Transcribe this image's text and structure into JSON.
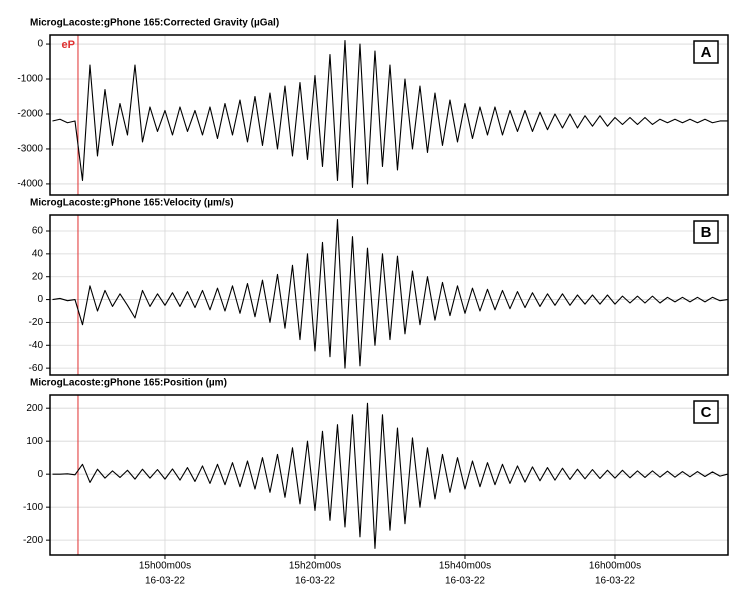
{
  "time_axis": {
    "xlim": [
      884.67,
      975.07
    ],
    "xticks": [
      {
        "value": 900,
        "label": "15h00m00s"
      },
      {
        "value": 920,
        "label": "15h20m00s"
      },
      {
        "value": 940,
        "label": "15h40m00s"
      },
      {
        "value": 960,
        "label": "16h00m00s"
      }
    ],
    "tick_dates": [
      "16-03-22",
      "16-03-22",
      "16-03-22",
      "16-03-22"
    ]
  },
  "marker": {
    "label": "eP",
    "x": 888.4,
    "color": "#e03030"
  },
  "chart_data": [
    {
      "type": "line",
      "title": "MicrogLacoste:gPhone 165:Corrected Gravity (µGal)",
      "panel_label": "A",
      "color": "#000000",
      "grid": true,
      "ylim": [
        -4317,
        259
      ],
      "yticks": [
        0,
        -1000,
        -2000,
        -3000,
        -4000
      ],
      "x": [
        885,
        886,
        887,
        888,
        889,
        890,
        891,
        892,
        893,
        894,
        895,
        896,
        897,
        898,
        899,
        900,
        901,
        902,
        903,
        904,
        905,
        906,
        907,
        908,
        909,
        910,
        911,
        912,
        913,
        914,
        915,
        916,
        917,
        918,
        919,
        920,
        921,
        922,
        923,
        924,
        925,
        926,
        927,
        928,
        929,
        930,
        931,
        932,
        933,
        934,
        935,
        936,
        937,
        938,
        939,
        940,
        941,
        942,
        943,
        944,
        945,
        946,
        947,
        948,
        949,
        950,
        951,
        952,
        953,
        954,
        955,
        956,
        957,
        958,
        959,
        960,
        961,
        962,
        963,
        964,
        965,
        966,
        967,
        968,
        969,
        970,
        971,
        972,
        973,
        974,
        975
      ],
      "values": [
        -2200,
        -2150,
        -2250,
        -2200,
        -3900,
        -600,
        -3200,
        -1300,
        -2900,
        -1700,
        -2600,
        -600,
        -2800,
        -1800,
        -2500,
        -1900,
        -2600,
        -1800,
        -2500,
        -1900,
        -2600,
        -1800,
        -2700,
        -1700,
        -2600,
        -1600,
        -2800,
        -1500,
        -2900,
        -1400,
        -3000,
        -1200,
        -3200,
        -1100,
        -3300,
        -900,
        -3500,
        -300,
        -3900,
        100,
        -4100,
        0,
        -4000,
        -200,
        -3500,
        -600,
        -3600,
        -1000,
        -3000,
        -1200,
        -3100,
        -1400,
        -2900,
        -1600,
        -2800,
        -1700,
        -2700,
        -1800,
        -2600,
        -1800,
        -2600,
        -1900,
        -2500,
        -1900,
        -2500,
        -1950,
        -2450,
        -2000,
        -2400,
        -2000,
        -2400,
        -2050,
        -2350,
        -2050,
        -2350,
        -2100,
        -2300,
        -2100,
        -2300,
        -2100,
        -2300,
        -2150,
        -2250,
        -2150,
        -2250,
        -2150,
        -2250,
        -2150,
        -2250,
        -2200,
        -2200
      ]
    },
    {
      "type": "line",
      "title": "MicrogLacoste:gPhone 165:Velocity (µm/s)",
      "panel_label": "B",
      "color": "#000000",
      "grid": true,
      "ylim": [
        -66,
        74
      ],
      "yticks": [
        60,
        40,
        20,
        0,
        -20,
        -40,
        -60
      ],
      "x": [
        885,
        886,
        887,
        888,
        889,
        890,
        891,
        892,
        893,
        894,
        895,
        896,
        897,
        898,
        899,
        900,
        901,
        902,
        903,
        904,
        905,
        906,
        907,
        908,
        909,
        910,
        911,
        912,
        913,
        914,
        915,
        916,
        917,
        918,
        919,
        920,
        921,
        922,
        923,
        924,
        925,
        926,
        927,
        928,
        929,
        930,
        931,
        932,
        933,
        934,
        935,
        936,
        937,
        938,
        939,
        940,
        941,
        942,
        943,
        944,
        945,
        946,
        947,
        948,
        949,
        950,
        951,
        952,
        953,
        954,
        955,
        956,
        957,
        958,
        959,
        960,
        961,
        962,
        963,
        964,
        965,
        966,
        967,
        968,
        969,
        970,
        971,
        972,
        973,
        974,
        975
      ],
      "values": [
        0,
        1,
        -1,
        0,
        -22,
        12,
        -10,
        8,
        -6,
        5,
        -5,
        -16,
        8,
        -6,
        5,
        -5,
        6,
        -6,
        7,
        -7,
        8,
        -9,
        10,
        -10,
        12,
        -12,
        14,
        -15,
        17,
        -20,
        22,
        -25,
        30,
        -35,
        40,
        -45,
        50,
        -50,
        70,
        -60,
        55,
        -58,
        45,
        -40,
        40,
        -35,
        38,
        -30,
        25,
        -22,
        20,
        -18,
        15,
        -14,
        12,
        -12,
        10,
        -10,
        9,
        -9,
        8,
        -8,
        7,
        -7,
        6,
        -6,
        5,
        -5,
        5,
        -5,
        4,
        -4,
        4,
        -4,
        4,
        -4,
        3,
        -3,
        3,
        -3,
        3,
        -3,
        2,
        -2,
        2,
        -2,
        2,
        -2,
        2,
        -1,
        0
      ]
    },
    {
      "type": "line",
      "title": "MicrogLacoste:gPhone 165:Position (µm)",
      "panel_label": "C",
      "color": "#000000",
      "grid": true,
      "ylim": [
        -245,
        240
      ],
      "yticks": [
        200,
        100,
        0,
        -100,
        -200
      ],
      "x": [
        885,
        886,
        887,
        888,
        889,
        890,
        891,
        892,
        893,
        894,
        895,
        896,
        897,
        898,
        899,
        900,
        901,
        902,
        903,
        904,
        905,
        906,
        907,
        908,
        909,
        910,
        911,
        912,
        913,
        914,
        915,
        916,
        917,
        918,
        919,
        920,
        921,
        922,
        923,
        924,
        925,
        926,
        927,
        928,
        929,
        930,
        931,
        932,
        933,
        934,
        935,
        936,
        937,
        938,
        939,
        940,
        941,
        942,
        943,
        944,
        945,
        946,
        947,
        948,
        949,
        950,
        951,
        952,
        953,
        954,
        955,
        956,
        957,
        958,
        959,
        960,
        961,
        962,
        963,
        964,
        965,
        966,
        967,
        968,
        969,
        970,
        971,
        972,
        973,
        974,
        975
      ],
      "values": [
        0,
        0,
        1,
        -2,
        30,
        -25,
        15,
        -12,
        10,
        -10,
        12,
        -15,
        15,
        -12,
        14,
        -15,
        16,
        -18,
        20,
        -22,
        25,
        -28,
        30,
        -32,
        35,
        -38,
        40,
        -45,
        50,
        -55,
        60,
        -70,
        80,
        -90,
        100,
        -110,
        130,
        -140,
        150,
        -160,
        180,
        -190,
        215,
        -225,
        180,
        -170,
        140,
        -150,
        110,
        -100,
        80,
        -75,
        60,
        -55,
        50,
        -45,
        40,
        -38,
        35,
        -32,
        30,
        -28,
        25,
        -24,
        22,
        -20,
        20,
        -18,
        18,
        -16,
        15,
        -14,
        14,
        -13,
        12,
        -12,
        12,
        -11,
        10,
        -10,
        10,
        -9,
        9,
        -9,
        8,
        -8,
        8,
        -7,
        7,
        -6,
        0
      ]
    }
  ]
}
